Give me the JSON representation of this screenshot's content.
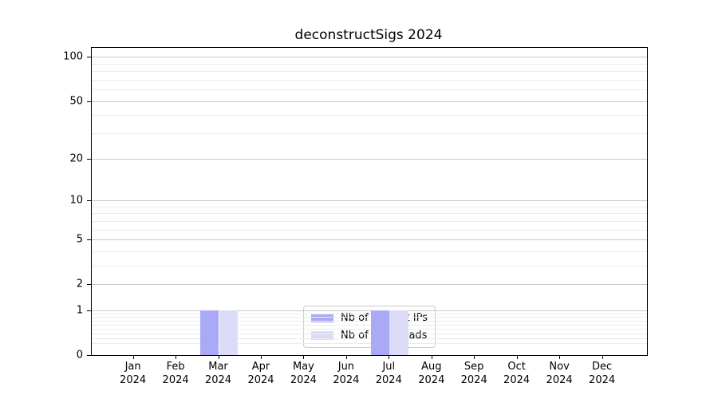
{
  "chart_data": {
    "type": "bar",
    "title": "deconstructSigs 2024",
    "scale": "log1p",
    "grid": true,
    "legend_position": "lower center",
    "x_tick_months": [
      "Jan",
      "Feb",
      "Mar",
      "Apr",
      "May",
      "Jun",
      "Jul",
      "Aug",
      "Sep",
      "Oct",
      "Nov",
      "Dec"
    ],
    "x_tick_year": "2024",
    "series": [
      {
        "name": "Nb of distinct IPs",
        "color": "#a9a9f5",
        "values": [
          0,
          0,
          1,
          0,
          0,
          0,
          1,
          0,
          0,
          0,
          0,
          0
        ]
      },
      {
        "name": "Nb of downloads",
        "color": "#dcdcf8",
        "values": [
          0,
          0,
          1,
          0,
          0,
          0,
          1,
          0,
          0,
          0,
          0,
          0
        ]
      }
    ],
    "y_major_ticks": [
      0,
      1,
      2,
      5,
      10,
      20,
      50,
      100
    ],
    "y_minor_gridlines": [
      0.2,
      0.3,
      0.4,
      0.5,
      0.6,
      0.7,
      0.8,
      0.9,
      3,
      4,
      6,
      7,
      8,
      9,
      30,
      40,
      60,
      70,
      80,
      90
    ],
    "ylim": [
      0,
      115.3
    ],
    "colors": {
      "major_grid": "#c9c9c9",
      "minor_grid": "#ebebeb",
      "axis": "#000000",
      "text": "#000000",
      "background": "#ffffff"
    }
  }
}
